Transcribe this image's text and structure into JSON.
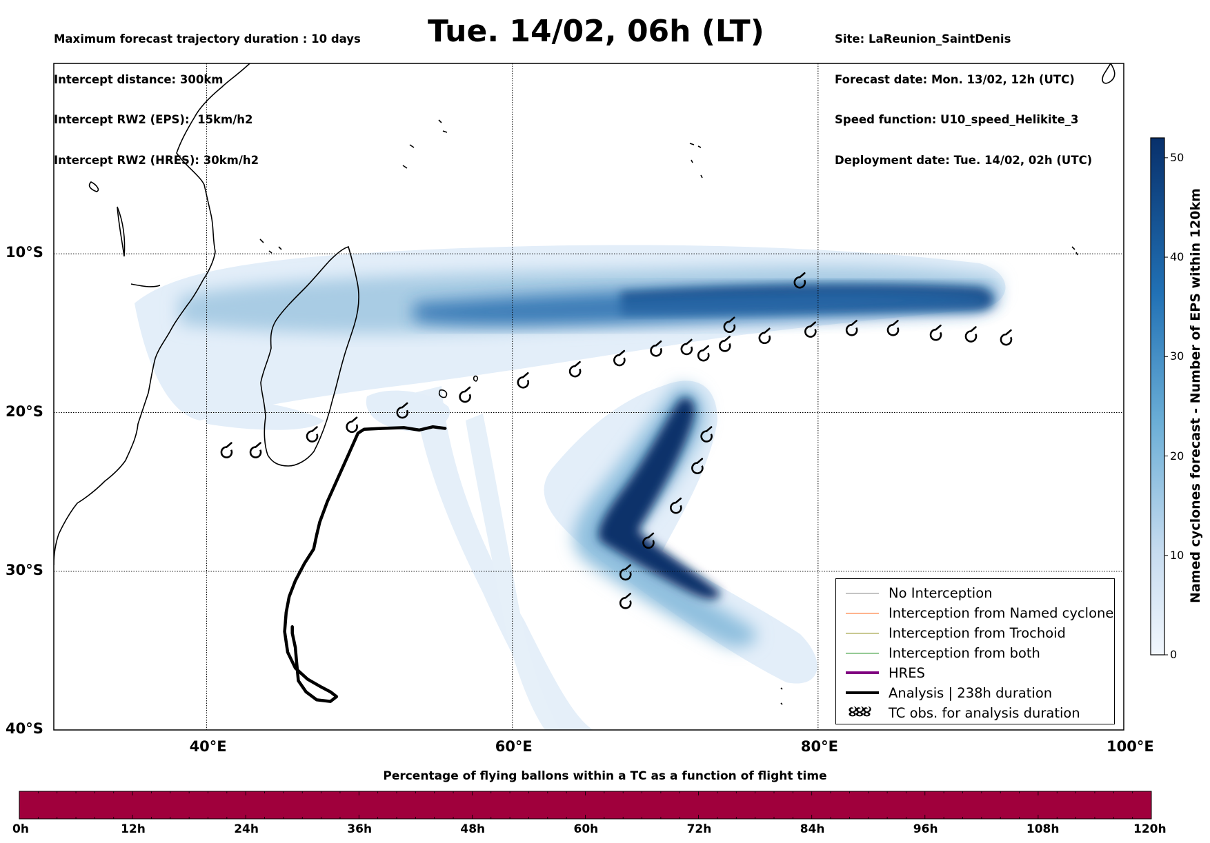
{
  "header_left": {
    "line1": "Maximum forecast trajectory duration : 10 days",
    "line2": "Intercept distance: 300km",
    "line3": "Intercept RW2 (EPS):  15km/h2",
    "line4": "Intercept RW2 (HRES): 30km/h2"
  },
  "title": "Tue. 14/02, 06h (LT)",
  "header_right": {
    "site": "Site: LaReunion_SaintDenis",
    "forecast_date": "Forecast date: Mon. 13/02, 12h (UTC)",
    "speed_function": "Speed function: U10_speed_Helikite_3",
    "deployment_date": "Deployment date: Tue. 14/02, 02h (UTC)"
  },
  "map": {
    "lon_range": [
      30,
      100
    ],
    "lat_range": [
      -40,
      2
    ],
    "lat_labels": [
      "10°S",
      "20°S",
      "30°S",
      "40°S"
    ],
    "lon_labels": [
      "40°E",
      "60°E",
      "80°E",
      "100°E"
    ],
    "lat_values": [
      -10,
      -20,
      -30,
      -40
    ],
    "lon_values": [
      40,
      60,
      80,
      100
    ],
    "density_color": "#08306b",
    "analysis_track": [
      [
        55.6,
        -21.0
      ],
      [
        54.8,
        -20.9
      ],
      [
        53.9,
        -21.1
      ],
      [
        52.9,
        -20.95
      ],
      [
        51.5,
        -21.0
      ],
      [
        50.3,
        -21.05
      ],
      [
        49.9,
        -21.3
      ],
      [
        49.3,
        -22.6
      ],
      [
        48.6,
        -24.1
      ],
      [
        47.9,
        -25.6
      ],
      [
        47.4,
        -26.9
      ],
      [
        47.2,
        -27.7
      ],
      [
        47.0,
        -28.6
      ],
      [
        46.4,
        -29.5
      ],
      [
        45.8,
        -30.6
      ],
      [
        45.4,
        -31.6
      ],
      [
        45.2,
        -32.6
      ],
      [
        45.1,
        -33.8
      ],
      [
        45.3,
        -35.1
      ],
      [
        45.8,
        -36.1
      ],
      [
        46.6,
        -36.8
      ],
      [
        47.5,
        -37.3
      ],
      [
        48.1,
        -37.6
      ],
      [
        48.5,
        -37.9
      ],
      [
        48.1,
        -38.2
      ],
      [
        47.2,
        -38.1
      ],
      [
        46.5,
        -37.6
      ],
      [
        46.0,
        -36.9
      ],
      [
        45.9,
        -35.9
      ],
      [
        45.8,
        -34.8
      ],
      [
        45.6,
        -33.9
      ],
      [
        45.6,
        -33.5
      ]
    ],
    "analysis_color": "#000000",
    "tc_observations": [
      [
        41.3,
        -22.5
      ],
      [
        43.2,
        -22.5
      ],
      [
        46.9,
        -21.5
      ],
      [
        49.5,
        -20.9
      ],
      [
        52.8,
        -20.0
      ],
      [
        56.9,
        -19.0
      ],
      [
        60.7,
        -18.1
      ],
      [
        64.1,
        -17.4
      ],
      [
        67.0,
        -16.7
      ],
      [
        69.4,
        -16.1
      ],
      [
        71.4,
        -16.0
      ],
      [
        72.5,
        -16.4
      ],
      [
        73.9,
        -15.8
      ],
      [
        74.2,
        -14.6
      ],
      [
        76.5,
        -15.3
      ],
      [
        79.5,
        -14.9
      ],
      [
        82.2,
        -14.8
      ],
      [
        84.9,
        -14.8
      ],
      [
        87.7,
        -15.1
      ],
      [
        90.0,
        -15.2
      ],
      [
        92.3,
        -15.4
      ],
      [
        78.8,
        -11.8
      ],
      [
        72.7,
        -21.5
      ],
      [
        72.1,
        -23.5
      ],
      [
        70.7,
        -26.0
      ],
      [
        68.9,
        -28.2
      ],
      [
        67.4,
        -30.2
      ],
      [
        67.4,
        -32.0
      ]
    ]
  },
  "colorbar": {
    "title": "Named cyclones forecast - Number of EPS within 120km",
    "ticks": [
      "0",
      "10",
      "20",
      "30",
      "40",
      "50"
    ],
    "tick_values": [
      0,
      10,
      20,
      30,
      40,
      50
    ],
    "max": 52,
    "color_low": "#e4eff9",
    "color_high": "#08306b"
  },
  "legend": {
    "items": [
      {
        "label": "No Interception",
        "color": "#808080",
        "width": 1
      },
      {
        "label": "Interception from Named cyclone",
        "color": "#ff5500",
        "width": 1
      },
      {
        "label": "Interception from Trochoid",
        "color": "#808000",
        "width": 1
      },
      {
        "label": "Interception from both",
        "color": "#008000",
        "width": 1
      },
      {
        "label": "HRES",
        "color": "#800080",
        "width": 4
      },
      {
        "label": "Analysis | 238h duration",
        "color": "#000000",
        "width": 4
      }
    ],
    "obs_label": "TC obs. for analysis duration",
    "obs_symbol": "૪૪૪"
  },
  "bottom_bar": {
    "title": "Percentage of flying ballons within a TC as a function of flight time",
    "ticks": [
      "0h",
      "12h",
      "24h",
      "36h",
      "48h",
      "60h",
      "72h",
      "84h",
      "96h",
      "108h",
      "120h"
    ],
    "max_hours": 120,
    "fill_color": "#a0003c"
  }
}
